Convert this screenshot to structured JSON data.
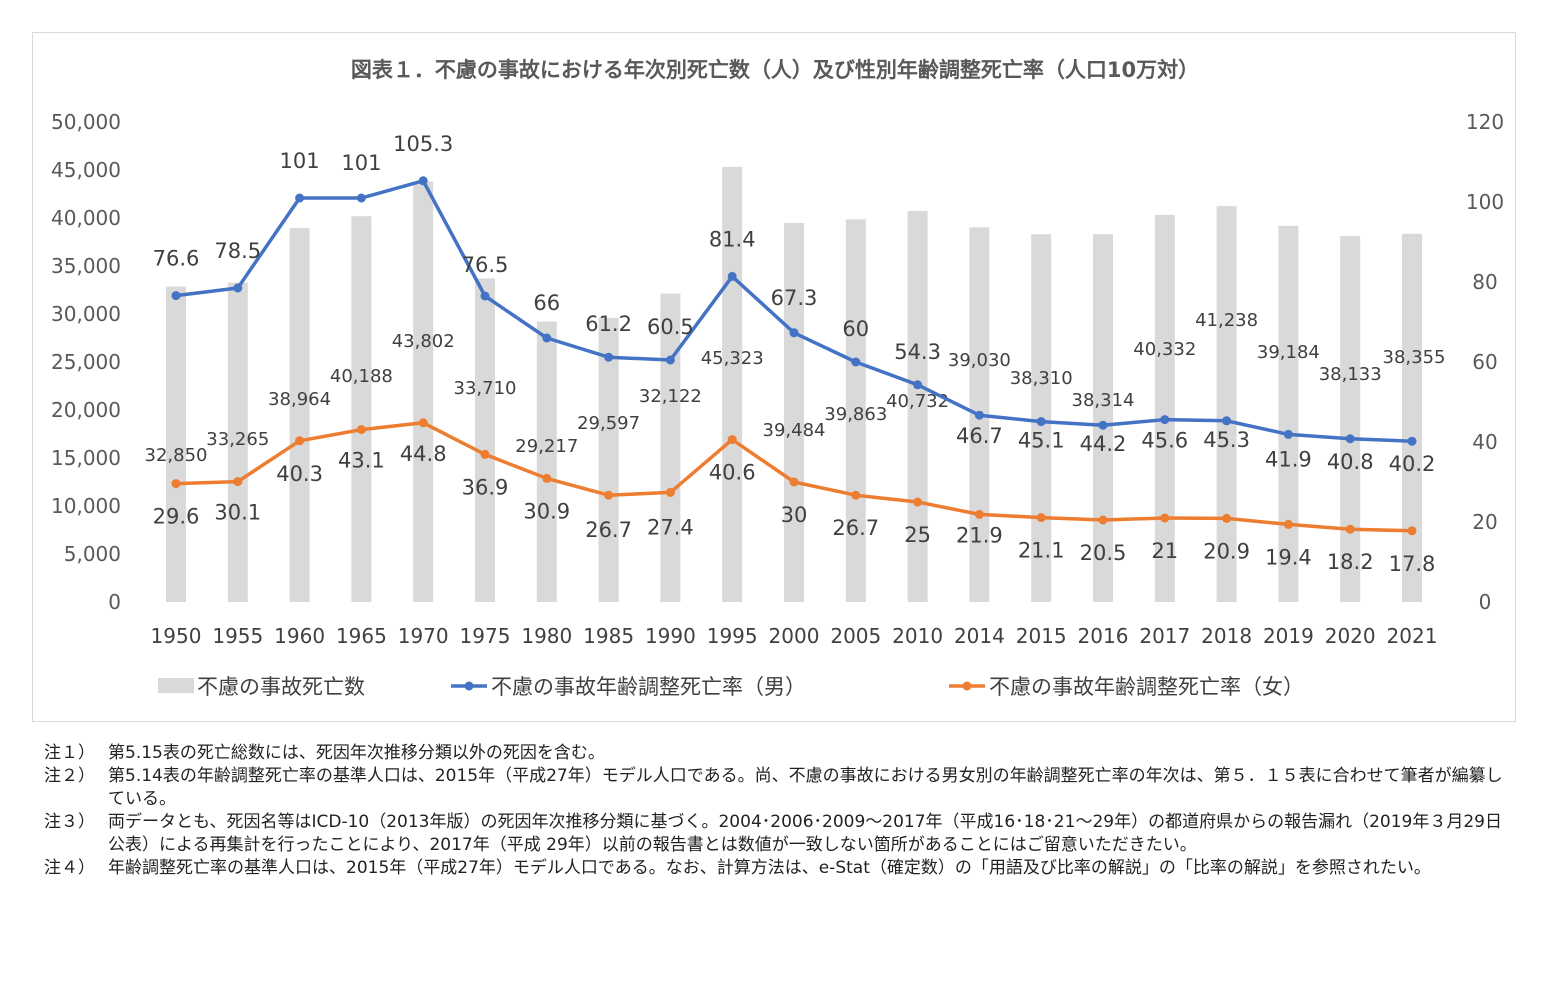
{
  "chart_data": {
    "type": "bar",
    "title": "図表１．不慮の事故における年次別死亡数（人）及び性別年齢調整死亡率（人口10万対）",
    "categories": [
      "1950",
      "1955",
      "1960",
      "1965",
      "1970",
      "1975",
      "1980",
      "1985",
      "1990",
      "1995",
      "2000",
      "2005",
      "2010",
      "2014",
      "2015",
      "2016",
      "2017",
      "2018",
      "2019",
      "2020",
      "2021"
    ],
    "y_left": {
      "ylim": [
        0,
        50000
      ],
      "ticks": [
        "0",
        "5,000",
        "10,000",
        "15,000",
        "20,000",
        "25,000",
        "30,000",
        "35,000",
        "40,000",
        "45,000",
        "50,000"
      ]
    },
    "y_right": {
      "ylim": [
        0,
        120
      ],
      "ticks": [
        "0",
        "20",
        "40",
        "60",
        "80",
        "100",
        "120"
      ]
    },
    "series": [
      {
        "name": "不慮の事故死亡数",
        "kind": "bar",
        "axis": "left",
        "color": "#d9d9d9",
        "values": [
          32850,
          33265,
          38964,
          40188,
          43802,
          33710,
          29217,
          29597,
          32122,
          45323,
          39484,
          39863,
          40732,
          39030,
          38310,
          38314,
          40332,
          41238,
          39184,
          38133,
          38355
        ],
        "labels": [
          "32,850",
          "33,265",
          "38,964",
          "40,188",
          "43,802",
          "33,710",
          "29,217",
          "29,597",
          "32,122",
          "45,323",
          "39,484",
          "39,863",
          "40,732",
          "39,030",
          "38,310",
          "38,314",
          "40,332",
          "41,238",
          "39,184",
          "38,133",
          "38,355"
        ]
      },
      {
        "name": "不慮の事故年齢調整死亡率（男）",
        "kind": "line",
        "axis": "right",
        "color": "#4472c4",
        "values": [
          76.6,
          78.5,
          101,
          101,
          105.3,
          76.5,
          66,
          61.2,
          60.5,
          81.4,
          67.3,
          60,
          54.3,
          46.7,
          45.1,
          44.2,
          45.6,
          45.3,
          41.9,
          40.8,
          40.2
        ],
        "labels": [
          "76.6",
          "78.5",
          "101",
          "101",
          "105.3",
          "76.5",
          "66",
          "61.2",
          "60.5",
          "81.4",
          "67.3",
          "60",
          "54.3",
          "46.7",
          "45.1",
          "44.2",
          "45.6",
          "45.3",
          "41.9",
          "40.8",
          "40.2"
        ]
      },
      {
        "name": "不慮の事故年齢調整死亡率（女）",
        "kind": "line",
        "axis": "right",
        "color": "#ed7d31",
        "values": [
          29.6,
          30.1,
          40.3,
          43.1,
          44.8,
          36.9,
          30.9,
          26.7,
          27.4,
          40.6,
          30,
          26.7,
          25,
          21.9,
          21.1,
          20.5,
          21,
          20.9,
          19.4,
          18.2,
          17.8
        ],
        "labels": [
          "29.6",
          "30.1",
          "40.3",
          "43.1",
          "44.8",
          "36.9",
          "30.9",
          "26.7",
          "27.4",
          "40.6",
          "30",
          "26.7",
          "25",
          "21.9",
          "21.1",
          "20.5",
          "21",
          "20.9",
          "19.4",
          "18.2",
          "17.8"
        ]
      }
    ],
    "legend": "bottom",
    "grid": false
  },
  "notes": [
    {
      "label": "注１）",
      "text": "第5.15表の死亡総数には、死因年次推移分類以外の死因を含む。"
    },
    {
      "label": "注２）",
      "text": "第5.14表の年齢調整死亡率の基準人口は、2015年（平成27年）モデル人口である。尚、不慮の事故における男女別の年齢調整死亡率の年次は、第５．１５表に合わせて筆者が編纂している。"
    },
    {
      "label": "注３）",
      "text": "両データとも、死因名等はICD-10（2013年版）の死因年次推移分類に基づく。2004･2006･2009～2017年（平成16･18･21～29年）の都道府県からの報告漏れ（2019年３月29日公表）による再集計を行ったことにより、2017年（平成 29年）以前の報告書とは数値が一致しない箇所があることにはご留意いただきたい。"
    },
    {
      "label": "注４）",
      "text": "年齢調整死亡率の基準人口は、2015年（平成27年）モデル人口である。なお、計算方法は、e-Stat（確定数）の「用語及び比率の解説」の「比率の解説」を参照されたい。"
    }
  ]
}
